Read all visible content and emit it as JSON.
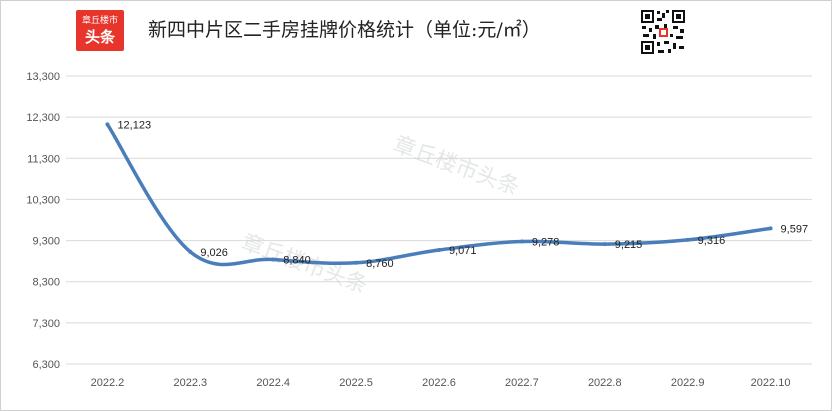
{
  "header": {
    "logo_line1": "章丘楼市",
    "logo_line2": "头条",
    "title": "新四中片区二手房挂牌价格统计（单位:元/㎡）"
  },
  "watermark": "章丘楼市头条",
  "chart_data": {
    "type": "line",
    "title": "新四中片区二手房挂牌价格统计（单位:元/㎡）",
    "categories": [
      "2022.2",
      "2022.3",
      "2022.4",
      "2022.5",
      "2022.6",
      "2022.7",
      "2022.8",
      "2022.9",
      "2022.10"
    ],
    "series": [
      {
        "values": [
          12123,
          9026,
          8840,
          8760,
          9071,
          9278,
          9215,
          9316,
          9597
        ]
      }
    ],
    "data_labels": [
      "12,123",
      "9,026",
      "8,840",
      "8,760",
      "9,071",
      "9,278",
      "9,215",
      "9,316",
      "9,597"
    ],
    "yticks": [
      6300,
      7300,
      8300,
      9300,
      10300,
      11300,
      12300,
      13300
    ],
    "ytick_labels": [
      "6,300",
      "7,300",
      "8,300",
      "9,300",
      "10,300",
      "11,300",
      "12,300",
      "13,300"
    ],
    "ylim": [
      6300,
      13300
    ],
    "grid": true,
    "line_color": "#4a7ebb",
    "grid_color": "#d9d9d9",
    "legend": "none"
  }
}
